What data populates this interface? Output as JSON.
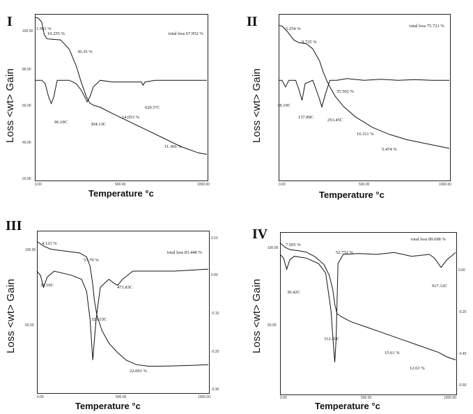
{
  "chart_data": [
    {
      "type": "line",
      "panel_label": "I",
      "ylabel": "Loss <wt> Gain",
      "xlabel": "Temperature °c",
      "xlim": [
        0,
        1000
      ],
      "left_axis": {
        "ylim": [
          20,
          100
        ],
        "ticks": [
          "100.00",
          "80.00",
          "60.00",
          "40.00",
          "20.00"
        ]
      },
      "x_ticks": [
        "0.00",
        "500.00",
        "1000.00"
      ],
      "series": [
        {
          "axis": "left",
          "x": [
            0,
            20,
            40,
            55,
            70,
            100,
            150,
            200,
            240,
            270,
            300,
            320,
            340,
            380,
            450,
            550,
            650,
            750,
            850,
            950,
            1000
          ],
          "values": [
            98.4,
            98.0,
            96.0,
            90.0,
            88.0,
            87.8,
            87.5,
            83.0,
            75.0,
            67.0,
            60.0,
            57.0,
            56.0,
            55.0,
            52.0,
            48.0,
            44.0,
            40.0,
            36.0,
            33.0,
            32.3
          ]
        },
        {
          "axis": "right",
          "x": [
            0,
            40,
            60,
            80,
            95,
            110,
            130,
            200,
            240,
            270,
            300,
            304,
            320,
            340,
            380,
            450,
            550,
            620,
            629,
            640,
            700,
            800,
            900,
            1000
          ],
          "values": [
            0.0,
            0.0,
            -0.01,
            -0.05,
            -0.07,
            -0.05,
            0.0,
            0.0,
            -0.01,
            -0.03,
            -0.06,
            -0.065,
            -0.05,
            -0.02,
            0.0,
            -0.005,
            -0.005,
            -0.005,
            -0.015,
            -0.005,
            0.0,
            0.0,
            0.0,
            0.0
          ]
        }
      ],
      "annotations": [
        "1.561 %",
        "10.255 %",
        "30.35 %",
        "96.10C",
        "304.13C",
        "14.053 %",
        "620.5°C",
        "11.366 %",
        "total loss 67.952 %"
      ]
    },
    {
      "type": "line",
      "panel_label": "II",
      "ylabel": "Loss <wt> Gain",
      "xlabel": "Temperature °c",
      "xlim": [
        0,
        1000
      ],
      "x_ticks": [
        "0.00",
        "500.00",
        "1000.00"
      ],
      "series": [
        {
          "axis": "left",
          "x": [
            0,
            20,
            50,
            90,
            120,
            160,
            200,
            240,
            260,
            290,
            330,
            380,
            450,
            550,
            650,
            750,
            850,
            950,
            1000
          ],
          "values": [
            98.5,
            98.0,
            95.0,
            90.0,
            88.5,
            88.0,
            85.0,
            78.0,
            72.0,
            65.0,
            58.0,
            52.0,
            46.0,
            40.0,
            36.0,
            33.0,
            31.0,
            29.0,
            28.0
          ]
        },
        {
          "axis": "right",
          "x": [
            0,
            20,
            40,
            60,
            100,
            120,
            137,
            155,
            200,
            235,
            253,
            275,
            300,
            340,
            400,
            500,
            600,
            700,
            800,
            900,
            1000
          ],
          "values": [
            0.0,
            0.0,
            -0.02,
            0.0,
            0.0,
            -0.03,
            -0.06,
            -0.01,
            0.0,
            -0.05,
            -0.08,
            -0.04,
            0.0,
            0.0,
            0.005,
            0.0,
            0.003,
            0.0,
            0.002,
            0.0,
            0.0
          ]
        }
      ],
      "annotations": [
        "5.254 %",
        "9.725 %",
        "38.19C",
        "137.89C",
        "253.45C",
        "35.502 %",
        "16.311 %",
        "5.474 %",
        "total loss 75.721 %"
      ]
    },
    {
      "type": "line",
      "panel_label": "III",
      "ylabel": "Loss <wt> Gain",
      "xlabel": "Temperature °c",
      "xlim": [
        0,
        1000
      ],
      "left_axis": {
        "ticks": [
          "100.00",
          "50.00"
        ]
      },
      "right_axis": {
        "ticks": [
          "0.10",
          "0.00",
          "-0.10",
          "-0.20",
          "-0.30"
        ]
      },
      "x_ticks": [
        "0.00",
        "500.00",
        "1000.00"
      ],
      "series": [
        {
          "axis": "left",
          "x": [
            0,
            40,
            80,
            150,
            250,
            290,
            310,
            326,
            335,
            350,
            380,
            420,
            470,
            520,
            580,
            650,
            720,
            800,
            900,
            1000
          ],
          "values": [
            98.0,
            95.0,
            93.0,
            92.0,
            90.5,
            88.0,
            82.0,
            70.0,
            60.0,
            50.0,
            40.0,
            32.0,
            26.0,
            21.0,
            18.0,
            17.0,
            17.0,
            17.2,
            17.5,
            18.0
          ]
        },
        {
          "axis": "right",
          "x": [
            0,
            20,
            39,
            60,
            100,
            200,
            260,
            290,
            310,
            326,
            345,
            370,
            420,
            450,
            471,
            500,
            560,
            650,
            800,
            1000
          ],
          "values": [
            0.0,
            -0.01,
            -0.04,
            -0.015,
            0.0,
            -0.01,
            -0.02,
            -0.05,
            -0.12,
            -0.22,
            -0.12,
            -0.04,
            -0.02,
            -0.03,
            -0.035,
            -0.02,
            0.0,
            0.0,
            0.0,
            0.005
          ]
        }
      ],
      "annotations": [
        "4.123 %",
        "57.79 %",
        "39.10C",
        "471.83C",
        "326.53C",
        "22.091 %",
        "total loss 83.448 %"
      ]
    },
    {
      "type": "line",
      "panel_label": "IV",
      "ylabel": "Loss <wt> Gain",
      "xlabel": "Temperature °c",
      "xlim": [
        0,
        1000
      ],
      "left_axis": {
        "ticks": [
          "100.00",
          "50.00"
        ]
      },
      "right_axis": {
        "ticks": [
          "0.00",
          "-0.20",
          "-0.40",
          "-0.60"
        ]
      },
      "x_ticks": [
        "0.00",
        "500.00",
        "1000.00"
      ],
      "series": [
        {
          "axis": "left",
          "x": [
            0,
            30,
            60,
            100,
            150,
            200,
            250,
            280,
            300,
            312,
            325,
            350,
            400,
            500,
            600,
            700,
            800,
            900,
            950,
            1000
          ],
          "values": [
            98.0,
            95.0,
            93.5,
            93.0,
            92.0,
            89.0,
            84.0,
            77.0,
            68.0,
            58.0,
            52.0,
            50.0,
            47.0,
            43.0,
            39.0,
            35.0,
            31.0,
            27.0,
            24.0,
            22.0
          ]
        },
        {
          "axis": "right",
          "x": [
            0,
            20,
            38,
            55,
            80,
            150,
            220,
            260,
            290,
            305,
            312,
            320,
            330,
            360,
            450,
            550,
            650,
            750,
            850,
            880,
            917,
            950,
            1000
          ],
          "values": [
            0.0,
            -0.02,
            -0.08,
            -0.03,
            -0.01,
            -0.02,
            -0.05,
            -0.1,
            -0.3,
            -0.5,
            -0.58,
            -0.45,
            -0.05,
            0.0,
            0.005,
            0.0,
            0.01,
            -0.01,
            0.0,
            -0.02,
            -0.07,
            -0.03,
            0.01
          ]
        }
      ],
      "annotations": [
        "7.505 %",
        "52.731 %",
        "30.42C",
        "312.20C",
        "15.61 %",
        "12.63 %",
        "917.12C",
        "total loss 89.698 %"
      ]
    }
  ]
}
